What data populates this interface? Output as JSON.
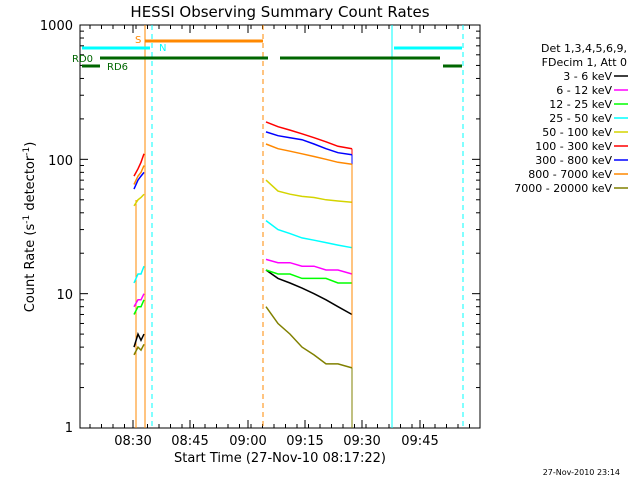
{
  "chart_data": {
    "type": "line",
    "title": "HESSI Observing Summary Count Rates",
    "xlabel": "Start Time (27-Nov-10 08:17:22)",
    "ylabel_main": "Count Rate (s",
    "ylabel_sup1": "-1",
    "ylabel_mid": " detector",
    "ylabel_sup2": "-1",
    "ylabel_end": ")",
    "y_scale": "log",
    "ylim": [
      1,
      1000
    ],
    "x_ticks": [
      "08:30",
      "08:45",
      "09:00",
      "09:15",
      "09:30",
      "09:45"
    ],
    "y_ticks": [
      "1",
      "10",
      "100",
      "1000"
    ],
    "timestamp": "27-Nov-2010 23:14",
    "legend_header": [
      "Det 1,3,4,5,6,9,",
      "FDecim 1, Att 0"
    ],
    "series": [
      {
        "name": "3 - 6 keV",
        "color": "#000000",
        "seg1": [
          4,
          5,
          4.5,
          5
        ],
        "seg2": [
          15,
          13,
          12,
          11,
          10,
          9,
          8,
          7
        ]
      },
      {
        "name": "6 - 12 keV",
        "color": "#ff00ff",
        "seg1": [
          8,
          9,
          9,
          10
        ],
        "seg2": [
          18,
          17,
          17,
          16,
          16,
          15,
          15,
          14
        ]
      },
      {
        "name": "12 - 25 keV",
        "color": "#00ff00",
        "seg1": [
          7,
          8,
          8,
          9
        ],
        "seg2": [
          15,
          14,
          14,
          13,
          13,
          13,
          12,
          12
        ]
      },
      {
        "name": "25 - 50 keV",
        "color": "#00ffff",
        "seg1": [
          12,
          14,
          14,
          16
        ],
        "seg2": [
          35,
          30,
          28,
          26,
          25,
          24,
          23,
          22
        ]
      },
      {
        "name": "50 - 100 keV",
        "color": "#d4d400",
        "seg1": [
          45,
          50,
          52,
          55
        ],
        "seg2": [
          70,
          58,
          55,
          53,
          52,
          50,
          49,
          48
        ]
      },
      {
        "name": "100 - 300 keV",
        "color": "#ff0000",
        "seg1": [
          75,
          85,
          95,
          110
        ],
        "seg2": [
          190,
          175,
          165,
          155,
          145,
          135,
          125,
          120
        ]
      },
      {
        "name": "300 - 800 keV",
        "color": "#0000ff",
        "seg1": [
          60,
          70,
          75,
          80
        ],
        "seg2": [
          160,
          150,
          145,
          140,
          130,
          120,
          112,
          108
        ]
      },
      {
        "name": "800 - 7000 keV",
        "color": "#ff8800",
        "seg1": [
          65,
          75,
          80,
          90
        ],
        "seg2": [
          130,
          120,
          115,
          110,
          105,
          100,
          95,
          92
        ]
      },
      {
        "name": "7000 - 20000 keV",
        "color": "#808000",
        "seg1": [
          3.5,
          4,
          3.8,
          4.2
        ],
        "seg2": [
          8,
          6,
          5,
          4,
          3.5,
          3,
          3,
          2.8
        ]
      }
    ],
    "annotations": {
      "S": "S",
      "N": "N",
      "RD0": "RD0",
      "RD6": "RD6"
    }
  }
}
